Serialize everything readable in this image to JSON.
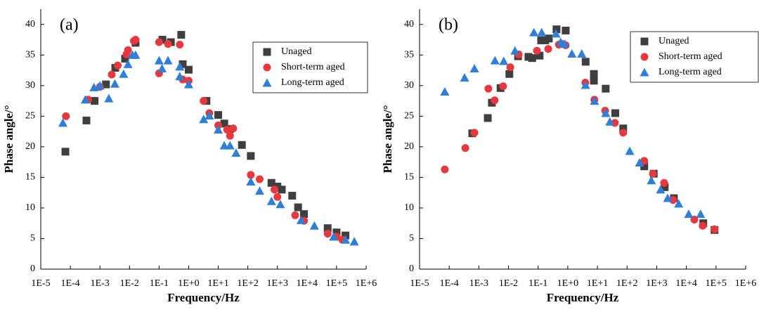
{
  "chart_data": [
    {
      "type": "scatter",
      "panel_label": "(a)",
      "x_label": "Frequency/Hz",
      "y_label": "Phase angle/°",
      "log_x": true,
      "xlim": [
        1e-05,
        1000000.0
      ],
      "ylim": [
        0,
        42.5
      ],
      "xticks": [
        {
          "value": 1e-05,
          "label": "1E-5"
        },
        {
          "value": 0.0001,
          "label": "1E-4"
        },
        {
          "value": 0.001,
          "label": "1E-3"
        },
        {
          "value": 0.01,
          "label": "1E-2"
        },
        {
          "value": 0.1,
          "label": "1E-1"
        },
        {
          "value": 1,
          "label": "1E+0"
        },
        {
          "value": 10,
          "label": "1E+1"
        },
        {
          "value": 100,
          "label": "1E+2"
        },
        {
          "value": 1000,
          "label": "1E+3"
        },
        {
          "value": 10000,
          "label": "1E+4"
        },
        {
          "value": 100000,
          "label": "1E+5"
        },
        {
          "value": 1000000,
          "label": "1E+6"
        }
      ],
      "yticks": [
        0,
        5,
        10,
        15,
        20,
        25,
        30,
        35,
        40
      ],
      "legend": "upper right",
      "series": [
        {
          "name": "Unaged",
          "color": "#3f3f3f",
          "marker": "square",
          "x": [
            6.8e-05,
            0.00035,
            0.00066,
            0.0016,
            0.0033,
            0.0071,
            0.016,
            0.13,
            0.25,
            0.56,
            0.63,
            1,
            4,
            10,
            16,
            25,
            63,
            126,
            630,
            1000,
            1410,
            3160,
            5000,
            7900,
            50000,
            100000,
            200000
          ],
          "values": [
            19.2,
            24.3,
            27.5,
            30.2,
            32.9,
            34.4,
            37.0,
            37.5,
            37.1,
            38.3,
            33.5,
            32.6,
            27.5,
            25.2,
            23.8,
            22.9,
            20.3,
            18.5,
            14.1,
            13.5,
            13.0,
            12.0,
            10.1,
            9.0,
            6.7,
            6.0,
            5.5
          ]
        },
        {
          "name": "Short-term aged",
          "color": "#e8383d",
          "marker": "circle",
          "x": [
            7.1e-05,
            0.0004,
            0.001,
            0.0025,
            0.004,
            0.0079,
            0.0089,
            0.016,
            0.014,
            0.1,
            0.1,
            0.2,
            0.5,
            0.63,
            1,
            3.2,
            5,
            10,
            20,
            25,
            32,
            126,
            251,
            794,
            1000,
            3980,
            7940,
            50100,
            100000,
            158000
          ],
          "values": [
            25.0,
            27.7,
            29.8,
            31.8,
            33.3,
            35.1,
            35.8,
            37.5,
            37.3,
            32.0,
            37.1,
            36.8,
            36.7,
            31.0,
            30.8,
            27.5,
            25.5,
            23.5,
            22.8,
            21.8,
            23.0,
            15.4,
            14.7,
            13.0,
            11.8,
            8.8,
            7.9,
            5.8,
            5.3,
            4.8
          ]
        },
        {
          "name": "Long-term aged",
          "color": "#2f7fd8",
          "marker": "triangle",
          "x": [
            5.6e-05,
            0.00032,
            0.00063,
            0.001,
            0.002,
            0.0032,
            0.0063,
            0.0089,
            0.0126,
            0.016,
            0.1,
            0.126,
            0.2,
            0.5,
            0.5,
            1,
            3.2,
            5,
            10,
            16,
            25,
            40,
            126,
            251,
            631,
            1260,
            6310,
            17800,
            79400,
            200000,
            398000
          ],
          "values": [
            23.9,
            27.7,
            29.7,
            30.0,
            27.9,
            30.3,
            31.9,
            33.5,
            35.0,
            35.0,
            34.1,
            32.8,
            34.1,
            33.1,
            31.5,
            30.2,
            24.5,
            25.1,
            22.8,
            20.2,
            20.2,
            19.0,
            14.3,
            12.8,
            11.1,
            10.6,
            8.0,
            7.1,
            5.3,
            4.8,
            4.5
          ]
        }
      ]
    },
    {
      "type": "scatter",
      "panel_label": "(b)",
      "x_label": "Frequency/Hz",
      "y_label": "Phase angle/°",
      "log_x": true,
      "xlim": [
        1e-05,
        1000000.0
      ],
      "ylim": [
        0,
        42.5
      ],
      "xticks": [
        {
          "value": 1e-05,
          "label": "1E-5"
        },
        {
          "value": 0.0001,
          "label": "1E-4"
        },
        {
          "value": 0.001,
          "label": "1E-3"
        },
        {
          "value": 0.01,
          "label": "1E-2"
        },
        {
          "value": 0.1,
          "label": "1E-1"
        },
        {
          "value": 1,
          "label": "1E+0"
        },
        {
          "value": 10,
          "label": "1E+1"
        },
        {
          "value": 100,
          "label": "1E+2"
        },
        {
          "value": 1000,
          "label": "1E+3"
        },
        {
          "value": 10000,
          "label": "1E+4"
        },
        {
          "value": 100000,
          "label": "1E+5"
        },
        {
          "value": 1000000,
          "label": "1E+6"
        }
      ],
      "yticks": [
        0,
        5,
        10,
        15,
        20,
        25,
        30,
        35,
        40
      ],
      "legend": "upper right",
      "series": [
        {
          "name": "Unaged",
          "color": "#3f3f3f",
          "marker": "square",
          "x": [
            0.0006,
            0.002,
            0.00275,
            0.0054,
            0.0107,
            0.021,
            0.047,
            0.063,
            0.112,
            0.126,
            0.174,
            0.229,
            0.417,
            0.85,
            4,
            7.6,
            7.6,
            19,
            40,
            74,
            380,
            794,
            1860,
            3800,
            37200,
            89100
          ],
          "values": [
            22.2,
            24.7,
            27.2,
            29.6,
            31.9,
            34.8,
            34.7,
            34.5,
            34.9,
            37.4,
            37.4,
            37.7,
            39.2,
            39.0,
            33.9,
            31.9,
            30.8,
            29.5,
            25.5,
            23.0,
            16.8,
            15.6,
            13.4,
            11.6,
            7.5,
            6.4
          ]
        },
        {
          "name": "Short-term aged",
          "color": "#e8383d",
          "marker": "circle",
          "x": [
            7.1e-05,
            0.00035,
            0.00071,
            0.0021,
            0.0034,
            0.0066,
            0.0115,
            0.022,
            0.091,
            0.219,
            0.5,
            0.646,
            0.85,
            3.9,
            7.9,
            18.2,
            38.9,
            74,
            380,
            741,
            1780,
            3550,
            18600,
            35500,
            89100
          ],
          "values": [
            16.3,
            19.8,
            22.3,
            29.5,
            27.6,
            29.9,
            33.0,
            35.1,
            35.7,
            36.0,
            36.7,
            36.8,
            36.6,
            30.5,
            27.7,
            25.9,
            23.9,
            22.3,
            17.7,
            15.6,
            14.1,
            11.3,
            8.1,
            7.1,
            6.5
          ]
        },
        {
          "name": "Long-term aged",
          "color": "#2f7fd8",
          "marker": "triangle",
          "x": [
            7.1e-05,
            0.00033,
            0.00071,
            0.0035,
            0.0069,
            0.0166,
            0.072,
            0.132,
            0.398,
            0.575,
            0.794,
            1.38,
            2.95,
            3.98,
            7.94,
            19.1,
            26.3,
            123,
            263,
            661,
            1350,
            2340,
            5500,
            12000,
            30200
          ],
          "values": [
            29.0,
            31.3,
            32.8,
            34.1,
            34.0,
            35.7,
            38.7,
            38.7,
            38.5,
            37.1,
            36.8,
            35.2,
            35.2,
            30.1,
            27.5,
            25.5,
            24.1,
            19.3,
            17.4,
            14.5,
            13.0,
            11.6,
            10.7,
            9.0,
            9.0
          ]
        }
      ]
    }
  ]
}
